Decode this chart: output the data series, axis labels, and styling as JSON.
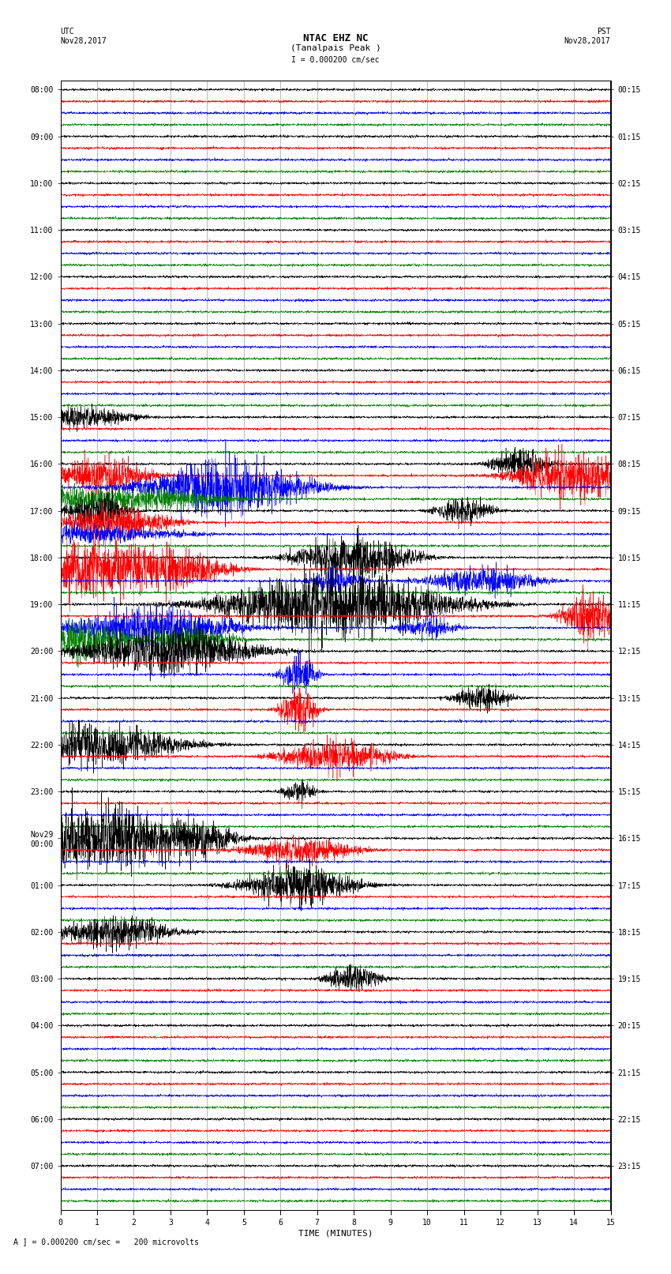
{
  "title_line1": "NTAC EHZ NC",
  "title_line2": "(Tanalpais Peak )",
  "scale_label": "I = 0.000200 cm/sec",
  "utc_label": "UTC\nNov28,2017",
  "pst_label": "PST\nNov28,2017",
  "bottom_label": "A ] = 0.000200 cm/sec =   200 microvolts",
  "xlabel": "TIME (MINUTES)",
  "left_times": [
    "08:00",
    "",
    "",
    "",
    "09:00",
    "",
    "",
    "",
    "10:00",
    "",
    "",
    "",
    "11:00",
    "",
    "",
    "",
    "12:00",
    "",
    "",
    "",
    "13:00",
    "",
    "",
    "",
    "14:00",
    "",
    "",
    "",
    "15:00",
    "",
    "",
    "",
    "16:00",
    "",
    "",
    "",
    "17:00",
    "",
    "",
    "",
    "18:00",
    "",
    "",
    "",
    "19:00",
    "",
    "",
    "",
    "20:00",
    "",
    "",
    "",
    "21:00",
    "",
    "",
    "",
    "22:00",
    "",
    "",
    "",
    "23:00",
    "",
    "",
    "",
    "Nov29\n00:00",
    "",
    "",
    "",
    "01:00",
    "",
    "",
    "",
    "02:00",
    "",
    "",
    "",
    "03:00",
    "",
    "",
    "",
    "04:00",
    "",
    "",
    "",
    "05:00",
    "",
    "",
    "",
    "06:00",
    "",
    "",
    "",
    "07:00",
    "",
    "",
    ""
  ],
  "right_times": [
    "00:15",
    "",
    "",
    "",
    "01:15",
    "",
    "",
    "",
    "02:15",
    "",
    "",
    "",
    "03:15",
    "",
    "",
    "",
    "04:15",
    "",
    "",
    "",
    "05:15",
    "",
    "",
    "",
    "06:15",
    "",
    "",
    "",
    "07:15",
    "",
    "",
    "",
    "08:15",
    "",
    "",
    "",
    "09:15",
    "",
    "",
    "",
    "10:15",
    "",
    "",
    "",
    "11:15",
    "",
    "",
    "",
    "12:15",
    "",
    "",
    "",
    "13:15",
    "",
    "",
    "",
    "14:15",
    "",
    "",
    "",
    "15:15",
    "",
    "",
    "",
    "16:15",
    "",
    "",
    "",
    "17:15",
    "",
    "",
    "",
    "18:15",
    "",
    "",
    "",
    "19:15",
    "",
    "",
    "",
    "20:15",
    "",
    "",
    "",
    "21:15",
    "",
    "",
    "",
    "22:15",
    "",
    "",
    "",
    "23:15",
    "",
    "",
    ""
  ],
  "trace_color_cycle": [
    "black",
    "red",
    "blue",
    "green"
  ],
  "n_rows": 96,
  "bg_color": "white",
  "xlim": [
    0,
    15
  ],
  "xticks": [
    0,
    1,
    2,
    3,
    4,
    5,
    6,
    7,
    8,
    9,
    10,
    11,
    12,
    13,
    14,
    15
  ],
  "figsize": [
    8.5,
    16.13
  ],
  "dpi": 100,
  "label_fontsize": 7,
  "title_fontsize": 9
}
